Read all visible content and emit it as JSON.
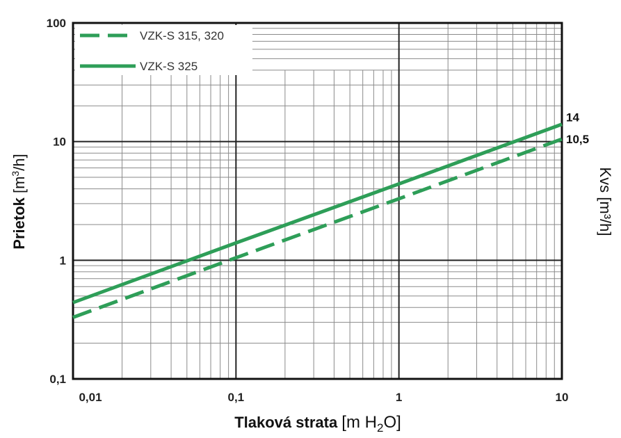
{
  "chart_data": {
    "type": "line",
    "x_scale": "log",
    "y_scale": "log",
    "xlim": [
      0.01,
      10
    ],
    "ylim": [
      0.1,
      100
    ],
    "grid": true,
    "legend_position": "top-left",
    "x_ticks": [
      "0,01",
      "0,1",
      "1",
      "10"
    ],
    "y_ticks": [
      "0,1",
      "1",
      "10",
      "100"
    ],
    "xlabel_main": "Tlaková strata",
    "xlabel_unit": "[m H",
    "xlabel_sub": "2",
    "xlabel_close": "O]",
    "ylabel_main": "Prietok",
    "ylabel_unit": "[m",
    "ylabel_sup": "3",
    "ylabel_close": "/h]",
    "right_label": "Kvs [m³/h]",
    "series": [
      {
        "name": "VZK-S 315, 320",
        "style": "dashed",
        "color": "#2e9e58",
        "end_label": "10,5",
        "x": [
          0.01,
          0.1,
          1,
          10
        ],
        "y": [
          0.33,
          1.05,
          3.3,
          10.5
        ]
      },
      {
        "name": "VZK-S 325",
        "style": "solid",
        "color": "#2e9e58",
        "end_label": "14",
        "x": [
          0.01,
          0.1,
          1,
          10
        ],
        "y": [
          0.44,
          1.4,
          4.4,
          14
        ]
      }
    ]
  }
}
